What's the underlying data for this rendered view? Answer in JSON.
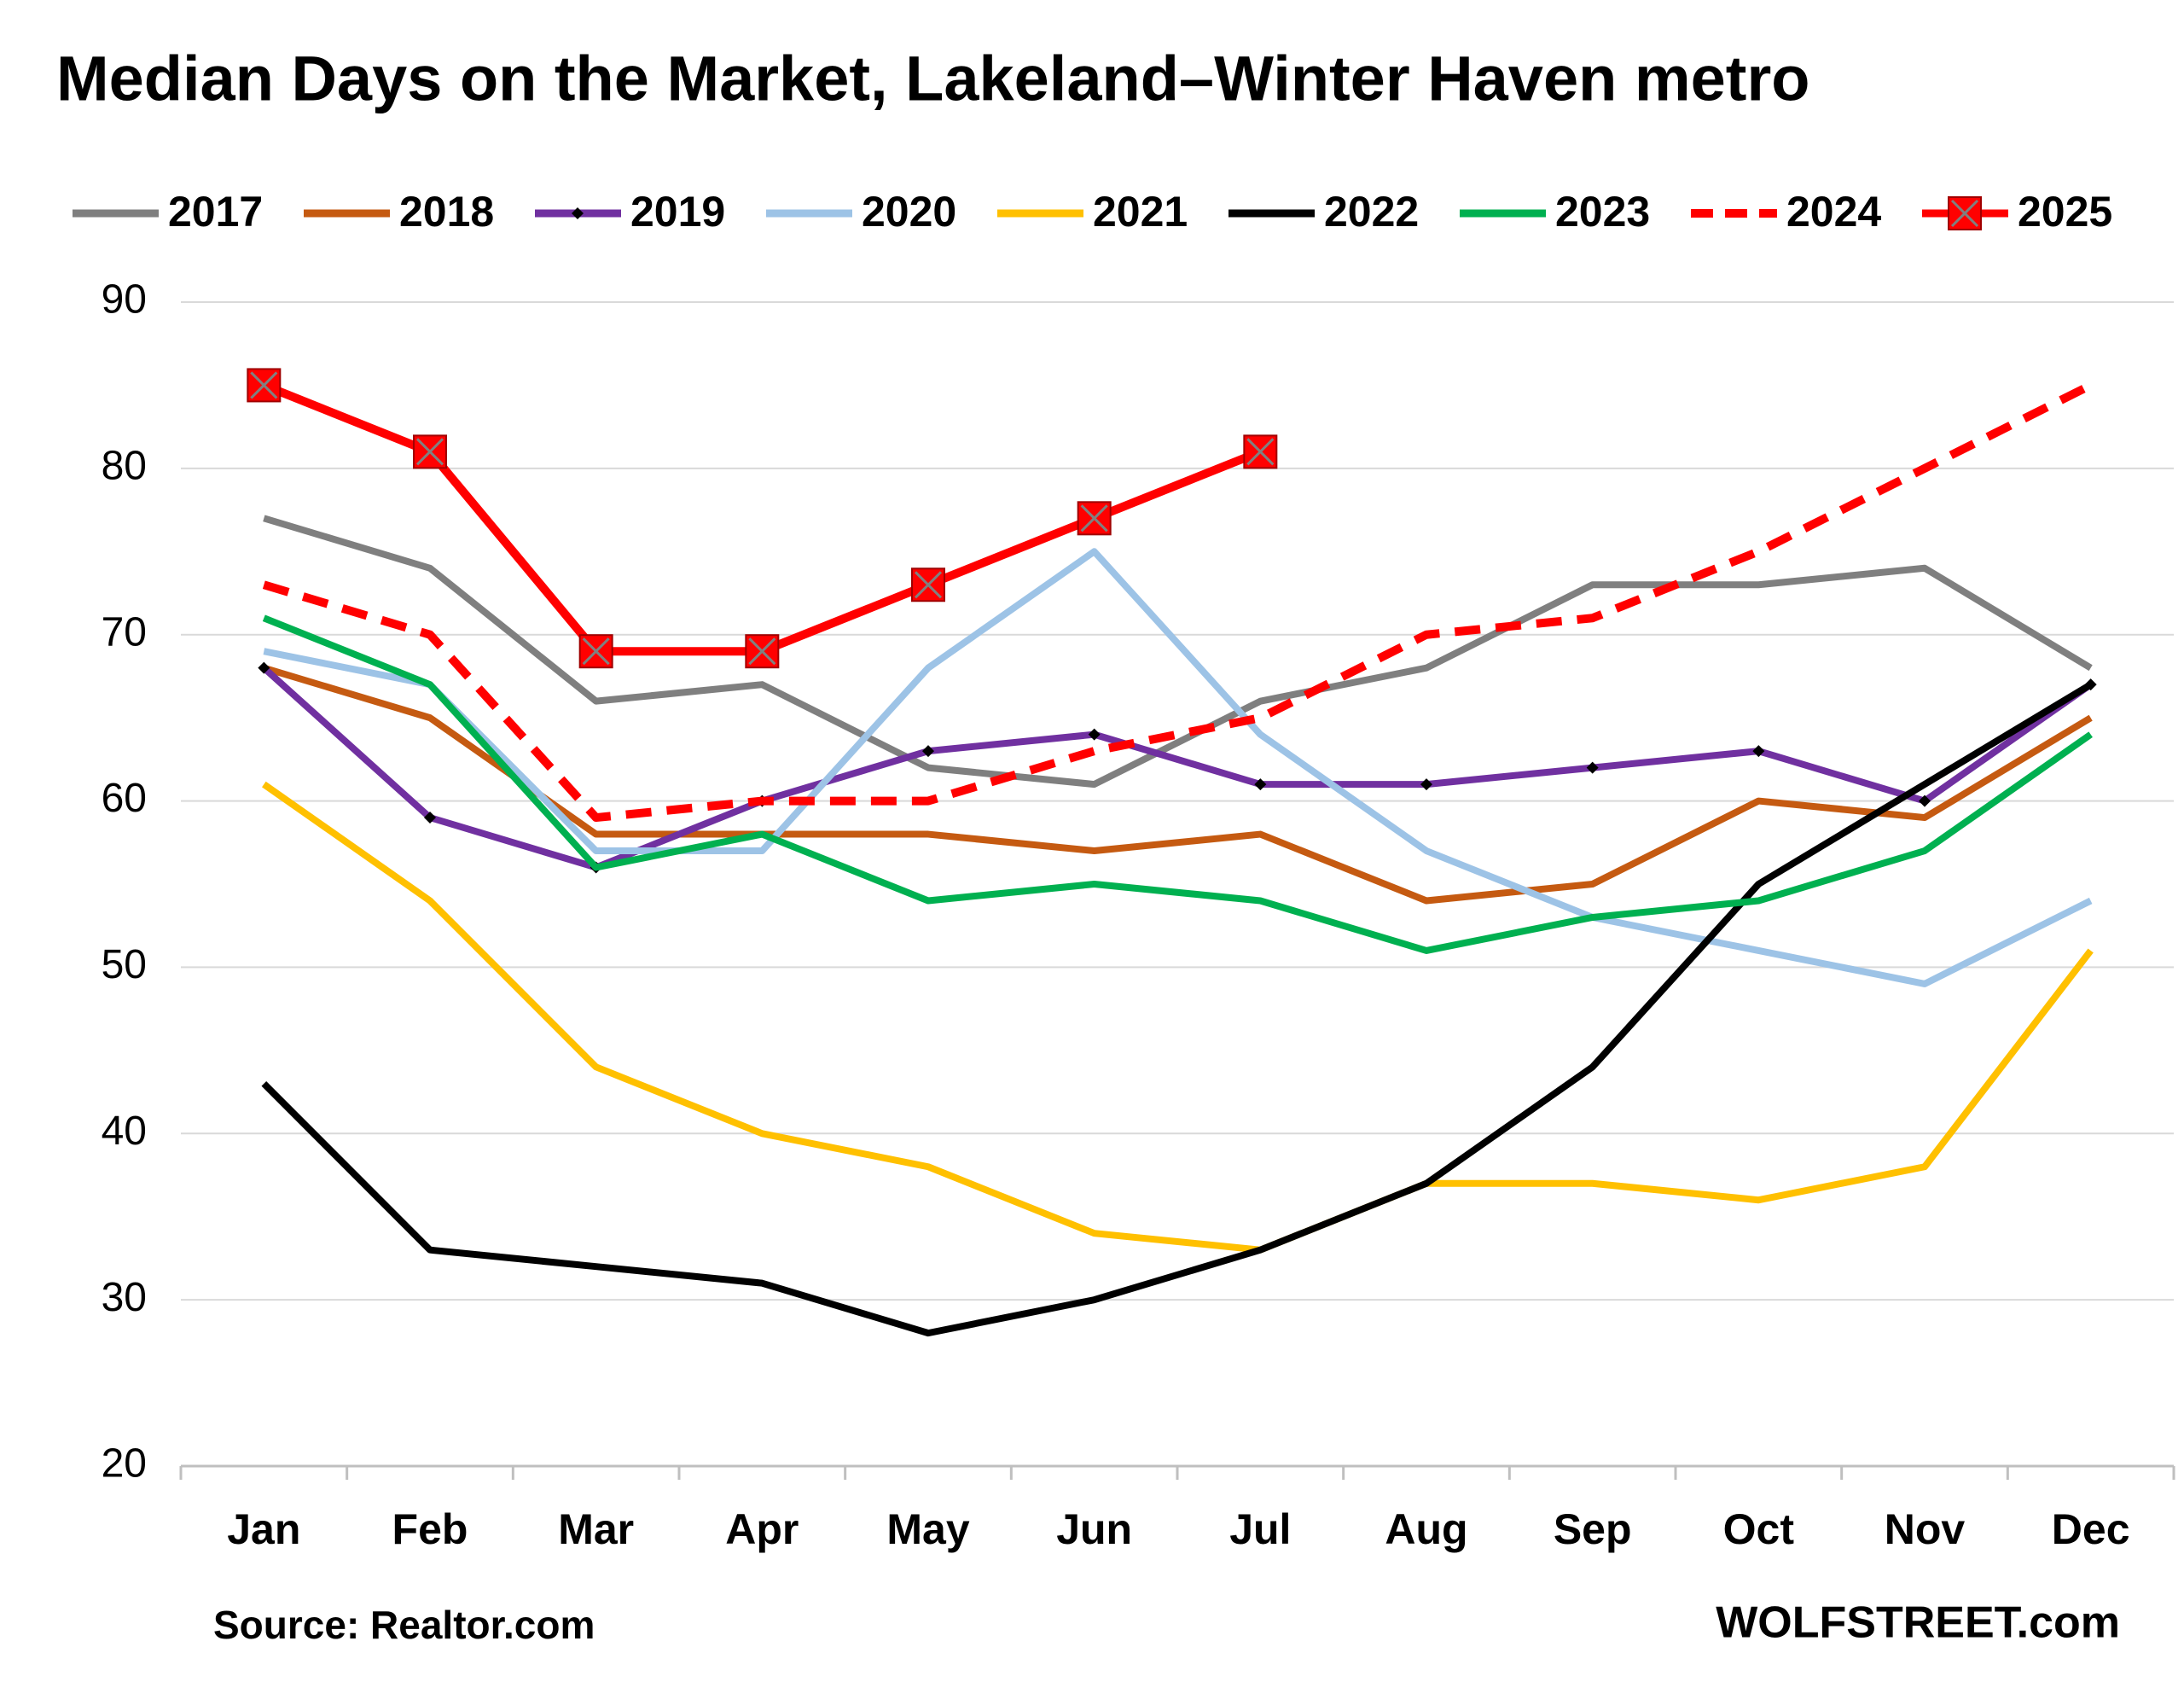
{
  "chart_data": {
    "type": "line",
    "title": "Median Days on the Market, Lakeland–Winter Haven metro",
    "source": "Source: Realtor.com",
    "credit": "WOLFSTREET.com",
    "categories": [
      "Jan",
      "Feb",
      "Mar",
      "Apr",
      "May",
      "Jun",
      "Jul",
      "Aug",
      "Sep",
      "Oct",
      "Nov",
      "Dec"
    ],
    "ylim": [
      20,
      90
    ],
    "yticks": [
      20,
      30,
      40,
      50,
      60,
      70,
      80,
      90
    ],
    "grid": true,
    "legend": "top",
    "series": [
      {
        "name": "2017",
        "color": "#7f7f7f",
        "values": [
          77,
          74,
          66,
          67,
          62,
          61,
          66,
          68,
          73,
          73,
          74,
          68
        ]
      },
      {
        "name": "2018",
        "color": "#c55a11",
        "values": [
          68,
          65,
          58,
          58,
          58,
          57,
          58,
          54,
          55,
          60,
          59,
          65
        ]
      },
      {
        "name": "2019",
        "color": "#7030a0",
        "marker": "diamond",
        "values": [
          68,
          59,
          56,
          60,
          63,
          64,
          61,
          61,
          62,
          63,
          60,
          67
        ]
      },
      {
        "name": "2020",
        "color": "#9dc3e6",
        "values": [
          69,
          67,
          57,
          57,
          68,
          75,
          64,
          57,
          53,
          51,
          49,
          54
        ]
      },
      {
        "name": "2021",
        "color": "#ffc000",
        "values": [
          61,
          54,
          44,
          40,
          38,
          34,
          33,
          37,
          37,
          36,
          38,
          51
        ]
      },
      {
        "name": "2022",
        "color": "#000000",
        "values": [
          43,
          33,
          32,
          31,
          28,
          30,
          33,
          37,
          44,
          55,
          61,
          67
        ]
      },
      {
        "name": "2023",
        "color": "#00b050",
        "values": [
          71,
          67,
          56,
          58,
          54,
          55,
          54,
          51,
          53,
          54,
          57,
          64
        ]
      },
      {
        "name": "2024",
        "color": "#ff0000",
        "dash": true,
        "values": [
          73,
          70,
          59,
          60,
          60,
          63,
          65,
          70,
          71,
          75,
          80,
          85
        ]
      },
      {
        "name": "2025",
        "color": "#ff0000",
        "marker": "square",
        "values": [
          85,
          81,
          69,
          69,
          73,
          77,
          81,
          null,
          null,
          null,
          null,
          null
        ]
      }
    ]
  }
}
